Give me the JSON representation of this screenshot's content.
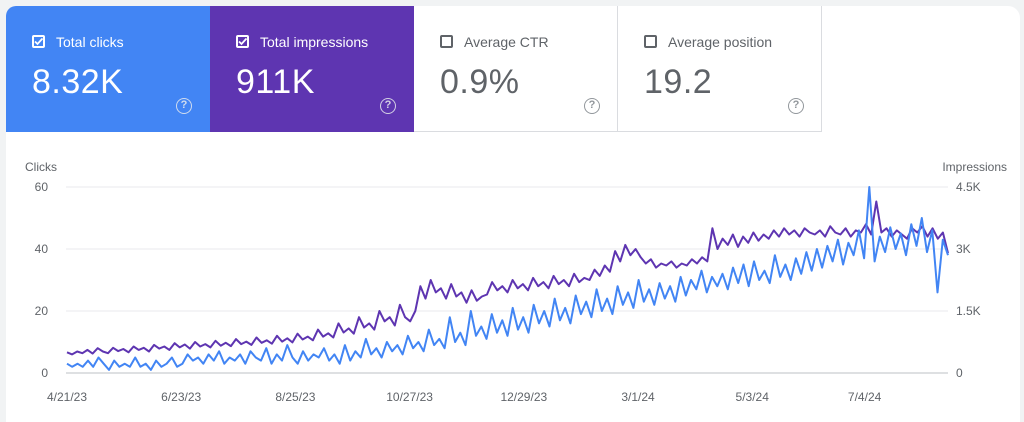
{
  "metrics": [
    {
      "label": "Total clicks",
      "value": "8.32K",
      "checked": true,
      "color": "#4285f4"
    },
    {
      "label": "Total impressions",
      "value": "911K",
      "checked": true,
      "color": "#5e35b1"
    },
    {
      "label": "Average CTR",
      "value": "0.9%",
      "checked": false
    },
    {
      "label": "Average position",
      "value": "19.2",
      "checked": false
    }
  ],
  "help_glyph": "?",
  "chart_data": {
    "type": "line",
    "ylabel": "Clicks",
    "y2label": "Impressions",
    "ylim": [
      0,
      60
    ],
    "y2lim": [
      0,
      4500
    ],
    "y_ticks": [
      "0",
      "20",
      "40",
      "60"
    ],
    "y2_ticks": [
      "0",
      "1.5K",
      "3K",
      "4.5K"
    ],
    "x_ticks": [
      "4/21/23",
      "6/23/23",
      "8/25/23",
      "10/27/23",
      "12/29/23",
      "3/1/24",
      "5/3/24",
      "7/4/24"
    ],
    "x_start": "2023-04-21",
    "x_end": "2024-08-19",
    "grid": true,
    "series": [
      {
        "name": "Clicks",
        "axis": "left",
        "color": "#4285f4",
        "values": [
          3,
          2,
          3,
          2,
          4,
          2,
          5,
          3,
          1,
          4,
          2,
          3,
          2,
          5,
          2,
          3,
          1,
          4,
          2,
          3,
          5,
          2,
          3,
          6,
          4,
          5,
          3,
          6,
          4,
          7,
          3,
          5,
          4,
          6,
          3,
          7,
          5,
          4,
          8,
          3,
          6,
          4,
          9,
          5,
          3,
          7,
          4,
          6,
          5,
          8,
          4,
          6,
          3,
          9,
          4,
          7,
          5,
          11,
          6,
          8,
          5,
          10,
          7,
          9,
          6,
          12,
          8,
          10,
          7,
          14,
          9,
          11,
          8,
          18,
          10,
          13,
          9,
          20,
          12,
          15,
          11,
          19,
          13,
          17,
          12,
          21,
          14,
          18,
          13,
          22,
          16,
          20,
          15,
          24,
          17,
          21,
          16,
          25,
          19,
          23,
          18,
          27,
          20,
          24,
          19,
          28,
          22,
          26,
          21,
          30,
          23,
          27,
          22,
          29,
          24,
          28,
          23,
          31,
          25,
          30,
          27,
          33,
          26,
          31,
          28,
          32,
          27,
          34,
          29,
          35,
          28,
          36,
          30,
          33,
          29,
          38,
          31,
          35,
          30,
          37,
          32,
          39,
          33,
          40,
          34,
          41,
          36,
          43,
          35,
          42,
          38,
          46,
          37,
          60,
          36,
          44,
          39,
          47,
          40,
          45,
          38,
          48,
          41,
          50,
          39,
          46,
          26,
          43,
          38
        ]
      },
      {
        "name": "Impressions",
        "axis": "right",
        "color": "#5e35b1",
        "values": [
          500,
          450,
          520,
          480,
          560,
          470,
          600,
          520,
          480,
          610,
          530,
          580,
          500,
          640,
          560,
          610,
          520,
          680,
          590,
          640,
          560,
          720,
          620,
          690,
          590,
          750,
          640,
          700,
          620,
          780,
          660,
          730,
          650,
          820,
          700,
          760,
          680,
          860,
          730,
          790,
          710,
          900,
          760,
          840,
          740,
          950,
          810,
          880,
          790,
          1050,
          880,
          960,
          860,
          1200,
          980,
          1080,
          950,
          1350,
          1100,
          1200,
          1050,
          1500,
          1250,
          1350,
          1150,
          1650,
          1350,
          1250,
          1500,
          2100,
          1800,
          2250,
          1950,
          2050,
          1800,
          2150,
          1850,
          1950,
          1700,
          2000,
          1750,
          1850,
          1900,
          2200,
          2000,
          2100,
          1950,
          2250,
          2050,
          2150,
          2000,
          2300,
          2100,
          2200,
          2050,
          2350,
          2150,
          2250,
          2100,
          2400,
          2200,
          2300,
          2250,
          2500,
          2350,
          2600,
          2450,
          2950,
          2700,
          3100,
          2850,
          3000,
          2800,
          2650,
          2750,
          2550,
          2650,
          2600,
          2700,
          2550,
          2650,
          2600,
          2750,
          2650,
          2800,
          2700,
          3500,
          3000,
          3250,
          3100,
          3350,
          3050,
          3300,
          3150,
          3400,
          3200,
          3350,
          3250,
          3450,
          3300,
          3500,
          3350,
          3450,
          3300,
          3500,
          3400,
          3350,
          3450,
          3300,
          3550,
          3400,
          3350,
          3500,
          3300,
          3450,
          3400,
          3600,
          3350,
          4150,
          3400,
          3500,
          3300,
          3450,
          3350,
          3250,
          3500,
          3400,
          3550,
          3300,
          3500,
          3250,
          3400,
          2900
        ]
      }
    ]
  }
}
